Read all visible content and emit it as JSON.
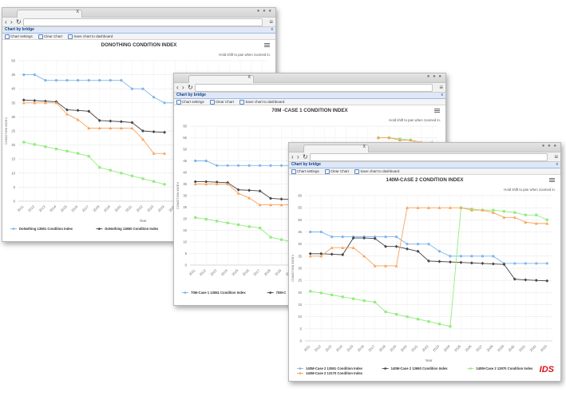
{
  "common": {
    "panel_title": "Chart by bridge",
    "toolbar": {
      "chart_settings": "Chart settings",
      "clear_chart": "Clear Chart",
      "save": "Save chart to dashboard"
    },
    "zoom_hint": "Hold shift to pan when zoomed in.",
    "close_symbol": "x",
    "x_axis_title": "Year",
    "y_axis_title": "CONDITION INDEX"
  },
  "logo_text": "IDS",
  "chart_data": [
    {
      "type": "line",
      "title": "DONOTHING CONDITION INDEX",
      "xlabel": "Year",
      "ylabel": "CONDITION INDEX",
      "ylim": [
        0,
        50
      ],
      "categories": [
        "2011",
        "2012",
        "2013",
        "2014",
        "2015",
        "2016",
        "2017",
        "2018",
        "2019",
        "2020",
        "2021",
        "2022",
        "2023",
        "2024",
        "2025",
        "2026",
        "2027",
        "2028",
        "2029",
        "2030",
        "2031",
        "2032",
        "2033"
      ],
      "series": [
        {
          "name": "DoNothing 13551 Condition Index",
          "color": "#7cb5ec",
          "marker": "circle",
          "values": [
            45,
            45,
            43,
            43,
            43,
            43,
            43,
            43,
            43,
            43,
            40,
            40,
            37,
            35,
            35,
            35,
            null,
            null,
            null,
            null,
            null,
            null,
            null
          ]
        },
        {
          "name": "DoNothing 13650 Condition Index",
          "color": "#434348",
          "marker": "diamond",
          "values": [
            36,
            35.8,
            35.6,
            35.4,
            32.5,
            32.3,
            32,
            28.7,
            28.5,
            28.3,
            28,
            25,
            24.7,
            24.5,
            null,
            null,
            null,
            null,
            null,
            null,
            null,
            null,
            null
          ]
        },
        {
          "name": "DoNothing 12970 Condition Index",
          "color": "#90ed7d",
          "marker": "square",
          "values": [
            21,
            20.2,
            19.4,
            18.6,
            17.8,
            17,
            16,
            12,
            11,
            10,
            9,
            8,
            7,
            6,
            null,
            null,
            null,
            null,
            null,
            null,
            null,
            null,
            null
          ]
        },
        {
          "name": "DoNothing 13170 Condition Index",
          "color": "#f7a35c",
          "marker": "triangle",
          "values": [
            35,
            35,
            35,
            35,
            31,
            29,
            26,
            26,
            26,
            26,
            26,
            22,
            17,
            17,
            null,
            null,
            null,
            null,
            null,
            null,
            null,
            null,
            null
          ]
        }
      ],
      "legend": [
        {
          "name": "DoNothing 13551 Condition Index",
          "color": "#7cb5ec"
        },
        {
          "name": "DoNothing 13650 Condition Index",
          "color": "#434348"
        },
        {
          "name": "DoNothing 13170 Condition Index",
          "color": "#f7a35c"
        }
      ]
    },
    {
      "type": "line",
      "title": "70M -CASE 1 CONDITION INDEX",
      "xlabel": "Year",
      "ylabel": "CONDITION INDEX",
      "ylim": [
        0,
        60
      ],
      "categories": [
        "2011",
        "2012",
        "2013",
        "2014",
        "2015",
        "2016",
        "2017",
        "2018",
        "2019",
        "2020",
        "2021",
        "2022",
        "2023",
        "2024",
        "2025",
        "2026",
        "2027",
        "2028",
        "2029",
        "2030",
        "2031",
        "2032",
        "2033"
      ],
      "series": [
        {
          "name": "70M-Case 1 13551 Condition Index",
          "color": "#7cb5ec",
          "marker": "circle",
          "values": [
            45,
            45,
            43,
            43,
            43,
            43,
            43,
            43,
            43,
            43,
            40,
            40,
            37,
            35,
            35,
            35,
            35,
            35,
            35,
            35,
            null,
            null,
            null
          ]
        },
        {
          "name": "70M-Case 1 13650 Condition Index",
          "color": "#434348",
          "marker": "diamond",
          "values": [
            36,
            36,
            35.8,
            35.6,
            32.5,
            32.3,
            32,
            28.8,
            28.5,
            28.3,
            28,
            27.5,
            27,
            null,
            null,
            null,
            null,
            null,
            null,
            null,
            null,
            null,
            null
          ]
        },
        {
          "name": "70M-Case 1 12970 Condition Index",
          "color": "#90ed7d",
          "marker": "square",
          "values": [
            20.5,
            19.8,
            19,
            18.2,
            17.4,
            16.6,
            16,
            12,
            11,
            10,
            9,
            8,
            7,
            null,
            null,
            null,
            null,
            55,
            55,
            54.5,
            54,
            52,
            52
          ]
        },
        {
          "name": "70M-Case 1 13170 Condition Index",
          "color": "#f7a35c",
          "marker": "triangle",
          "values": [
            35,
            35,
            35,
            35,
            31,
            29,
            26,
            26,
            26,
            26,
            26,
            22,
            17,
            null,
            null,
            null,
            null,
            55,
            55,
            54,
            54,
            53,
            53
          ]
        }
      ],
      "legend": [
        {
          "name": "70M-Case 1 13551 Condition Index",
          "color": "#7cb5ec"
        },
        {
          "name": "70M-C",
          "color": "#434348"
        },
        {
          "name": "70M-Case 1 13170 Condition Index",
          "color": "#f7a35c"
        }
      ]
    },
    {
      "type": "line",
      "title": "140M-CASE 2 CONDITION INDEX",
      "xlabel": "Year",
      "ylabel": "CONDITION INDEX",
      "ylim": [
        0,
        60
      ],
      "categories": [
        "2011",
        "2012",
        "2013",
        "2014",
        "2015",
        "2016",
        "2017",
        "2018",
        "2019",
        "2020",
        "2021",
        "2022",
        "2023",
        "2024",
        "2025",
        "2026",
        "2027",
        "2028",
        "2029",
        "2030",
        "2031",
        "2032",
        "2033"
      ],
      "series": [
        {
          "name": "140M-Case 2 13551 Condition Index",
          "color": "#7cb5ec",
          "marker": "circle",
          "values": [
            45,
            45,
            43,
            43,
            43,
            43,
            43,
            43,
            43,
            40,
            40,
            40,
            37,
            35,
            35,
            35,
            35,
            35,
            32,
            32,
            32,
            32,
            32
          ]
        },
        {
          "name": "140M-Case 2 13650 Condition Index",
          "color": "#434348",
          "marker": "diamond",
          "values": [
            36,
            36,
            35.8,
            35.6,
            42.5,
            42.5,
            42.3,
            39,
            39,
            38,
            37,
            33,
            32.8,
            32.6,
            32.4,
            32.2,
            32,
            31.8,
            31.6,
            25.5,
            25.2,
            25,
            24.8
          ]
        },
        {
          "name": "140M-Case 2 12970 Condition Index",
          "color": "#90ed7d",
          "marker": "square",
          "values": [
            20.5,
            19.8,
            19,
            18.2,
            17.4,
            16.6,
            16,
            12,
            11,
            10,
            9,
            8,
            7,
            6,
            55,
            54.5,
            54,
            54,
            53.5,
            53,
            52,
            52,
            50
          ]
        },
        {
          "name": "140M-Case 2 13170 Condition Index",
          "color": "#f7a35c",
          "marker": "triangle",
          "values": [
            35,
            35,
            38.5,
            38.5,
            38.5,
            35,
            31,
            31,
            31,
            55,
            55,
            55,
            55,
            55,
            55,
            54,
            54,
            53,
            51,
            51,
            49,
            48.5,
            48.5
          ]
        }
      ],
      "legend": [
        {
          "name": "140M-Case 2 13551 Condition Index",
          "color": "#7cb5ec"
        },
        {
          "name": "140M-Case 2 13650 Condition Index",
          "color": "#434348"
        },
        {
          "name": "140M-Case 2 12970 Condition Index",
          "color": "#90ed7d"
        },
        {
          "name": "140M-Case 2 13170 Condition Index",
          "color": "#f7a35c"
        }
      ]
    }
  ]
}
